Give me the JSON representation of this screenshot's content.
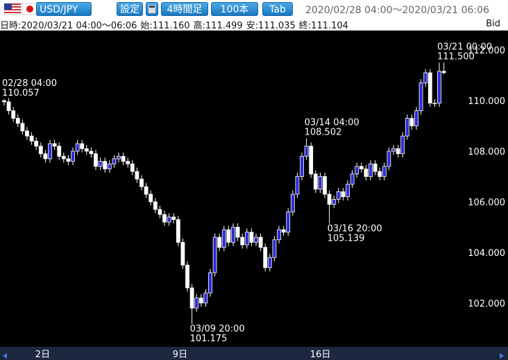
{
  "header": {
    "pair": "USD/JPY",
    "settings": "設定",
    "timeframe": "4時間足",
    "count": "100本",
    "tab": "Tab",
    "range": "2020/02/28 04:00～2020/03/21 06:06"
  },
  "info": {
    "datetime": "日時:2020/03/21 04:00～06:06",
    "open": "始:111.160",
    "high": "高:111.499",
    "low": "安:111.035",
    "close": "終:111.104",
    "side": "Bid"
  },
  "chart_data": {
    "type": "candlestick",
    "categories": [
      null,
      null,
      null,
      null,
      null,
      null,
      null,
      null,
      "2日",
      null,
      null,
      null,
      null,
      null,
      null,
      null,
      null,
      null,
      null,
      null,
      null,
      null,
      null,
      null,
      null,
      null,
      null,
      null,
      null,
      null,
      null,
      null,
      null,
      null,
      null,
      null,
      null,
      null,
      "9日",
      null,
      null,
      null,
      null,
      null,
      null,
      null,
      null,
      null,
      null,
      null,
      null,
      null,
      null,
      null,
      null,
      null,
      null,
      null,
      null,
      null,
      null,
      null,
      null,
      null,
      null,
      null,
      null,
      null,
      "16日",
      null,
      null,
      null,
      null,
      null,
      null,
      null,
      null,
      null,
      null,
      null,
      null,
      null,
      null,
      null,
      null,
      null,
      null,
      null,
      null,
      null,
      null,
      null,
      null,
      null,
      null,
      null,
      null
    ],
    "open": [
      110,
      109.95,
      109.6,
      109.3,
      109.1,
      108.8,
      108.6,
      108.4,
      108.2,
      107.9,
      107.7,
      108.3,
      108.2,
      107.8,
      107.7,
      107.6,
      108.0,
      108.3,
      108.1,
      108.0,
      107.9,
      107.4,
      107.6,
      107.3,
      107.5,
      107.7,
      107.8,
      107.6,
      107.5,
      107.2,
      106.9,
      106.6,
      106.3,
      106.0,
      105.7,
      105.5,
      105.2,
      105.4,
      105.3,
      104.4,
      103.5,
      102.6,
      101.8,
      102.2,
      102.0,
      102.4,
      103.2,
      104.6,
      104.2,
      104.9,
      104.4,
      105.0,
      104.6,
      104.3,
      104.8,
      104.4,
      104.6,
      104.2,
      103.4,
      103.8,
      104.5,
      104.9,
      104.8,
      105.6,
      106.3,
      107.0,
      107.8,
      108.2,
      107.1,
      106.5,
      107.0,
      106.3,
      105.9,
      106.1,
      106.4,
      106.2,
      106.7,
      107.1,
      107.4,
      107.3,
      107.0,
      107.5,
      107.2,
      107.0,
      107.4,
      108.0,
      108.1,
      107.9,
      108.6,
      109.3,
      109.0,
      109.6,
      110.7,
      111.1,
      109.9,
      109.9,
      111.16
    ],
    "high": [
      110.057,
      110.1,
      109.75,
      109.45,
      109.25,
      108.95,
      108.75,
      108.55,
      108.35,
      108.05,
      108.45,
      108.45,
      108.35,
      107.95,
      107.85,
      108.15,
      108.45,
      108.45,
      108.25,
      108.15,
      108.05,
      107.75,
      107.75,
      107.65,
      107.85,
      107.95,
      107.95,
      107.75,
      107.65,
      107.35,
      107.05,
      106.75,
      106.45,
      106.15,
      105.85,
      105.65,
      105.55,
      105.55,
      105.45,
      104.55,
      103.65,
      102.75,
      102.35,
      102.35,
      102.55,
      103.35,
      104.75,
      104.75,
      105.05,
      105.05,
      105.15,
      105.15,
      104.75,
      104.95,
      104.95,
      104.75,
      104.75,
      104.35,
      103.95,
      104.65,
      105.05,
      105.05,
      105.75,
      106.45,
      107.15,
      107.95,
      108.502,
      108.35,
      107.25,
      107.15,
      107.15,
      106.45,
      106.25,
      106.55,
      106.55,
      106.85,
      107.25,
      107.55,
      107.55,
      107.45,
      107.65,
      107.65,
      107.35,
      107.55,
      108.15,
      108.25,
      108.25,
      108.75,
      109.45,
      109.45,
      109.75,
      110.85,
      111.25,
      111.25,
      110.05,
      111.5,
      111.499
    ],
    "low": [
      109.8,
      109.45,
      109.15,
      108.95,
      108.65,
      108.45,
      108.25,
      108.05,
      107.75,
      107.55,
      107.55,
      108.05,
      107.65,
      107.55,
      107.45,
      107.45,
      107.85,
      107.95,
      107.85,
      107.75,
      107.25,
      107.25,
      107.15,
      107.15,
      107.35,
      107.55,
      107.45,
      107.35,
      107.05,
      106.75,
      106.45,
      106.15,
      105.85,
      105.55,
      105.35,
      105.05,
      105.05,
      105.15,
      104.25,
      103.35,
      102.45,
      101.175,
      101.65,
      101.85,
      101.85,
      102.25,
      103.05,
      104.05,
      104.05,
      104.25,
      104.25,
      104.45,
      104.15,
      104.15,
      104.25,
      104.25,
      104.05,
      103.25,
      103.25,
      103.65,
      104.35,
      104.65,
      104.65,
      105.45,
      106.15,
      106.85,
      107.65,
      106.95,
      106.35,
      106.35,
      106.15,
      105.139,
      105.75,
      105.95,
      106.05,
      106.05,
      106.55,
      106.95,
      107.15,
      106.85,
      106.85,
      107.05,
      106.85,
      106.85,
      107.25,
      107.85,
      107.75,
      107.75,
      108.45,
      108.85,
      108.85,
      109.45,
      110.55,
      109.75,
      109.75,
      109.75,
      111.035
    ],
    "close": [
      109.95,
      109.6,
      109.3,
      109.1,
      108.8,
      108.6,
      108.4,
      108.2,
      107.9,
      107.7,
      108.3,
      108.2,
      107.8,
      107.7,
      107.6,
      108.0,
      108.3,
      108.1,
      108.0,
      107.9,
      107.4,
      107.6,
      107.3,
      107.5,
      107.7,
      107.8,
      107.6,
      107.5,
      107.2,
      106.9,
      106.6,
      106.3,
      106.0,
      105.7,
      105.5,
      105.2,
      105.4,
      105.3,
      104.4,
      103.5,
      102.6,
      101.8,
      102.2,
      102.0,
      102.4,
      103.2,
      104.6,
      104.2,
      104.9,
      104.4,
      105.0,
      104.6,
      104.3,
      104.8,
      104.4,
      104.6,
      104.2,
      103.4,
      103.8,
      104.5,
      104.9,
      104.8,
      105.6,
      106.3,
      107.0,
      107.8,
      108.2,
      107.1,
      106.5,
      107.0,
      106.3,
      105.9,
      106.1,
      106.4,
      106.2,
      106.7,
      107.1,
      107.4,
      107.3,
      107.0,
      107.5,
      107.2,
      107.0,
      107.4,
      108.0,
      108.1,
      107.9,
      108.6,
      109.3,
      109.0,
      109.6,
      110.7,
      111.1,
      109.9,
      109.9,
      111.16,
      111.104
    ],
    "up_color": "#2c2cd8",
    "down_color": "#ffffff",
    "wick_color": "#ffffff",
    "ylim": [
      100.27,
      112.77
    ],
    "yticks": [
      {
        "value": 102,
        "label": "102.000"
      },
      {
        "value": 104,
        "label": "104.000"
      },
      {
        "value": 106,
        "label": "106.000"
      },
      {
        "value": 108,
        "label": "108.000"
      },
      {
        "value": 110,
        "label": "110.000"
      },
      {
        "value": 112,
        "label": "112.000"
      }
    ],
    "annotations": [
      {
        "date": "02/28 04:00",
        "value": 110.057
      },
      {
        "date": "03/09 20:00",
        "value": 101.175
      },
      {
        "date": "03/14 04:00",
        "value": 108.502
      },
      {
        "date": "03/16 20:00",
        "value": 105.139
      },
      {
        "date": "03/21 00:00",
        "value": 111.5,
        "value_label": "111.500"
      }
    ]
  }
}
